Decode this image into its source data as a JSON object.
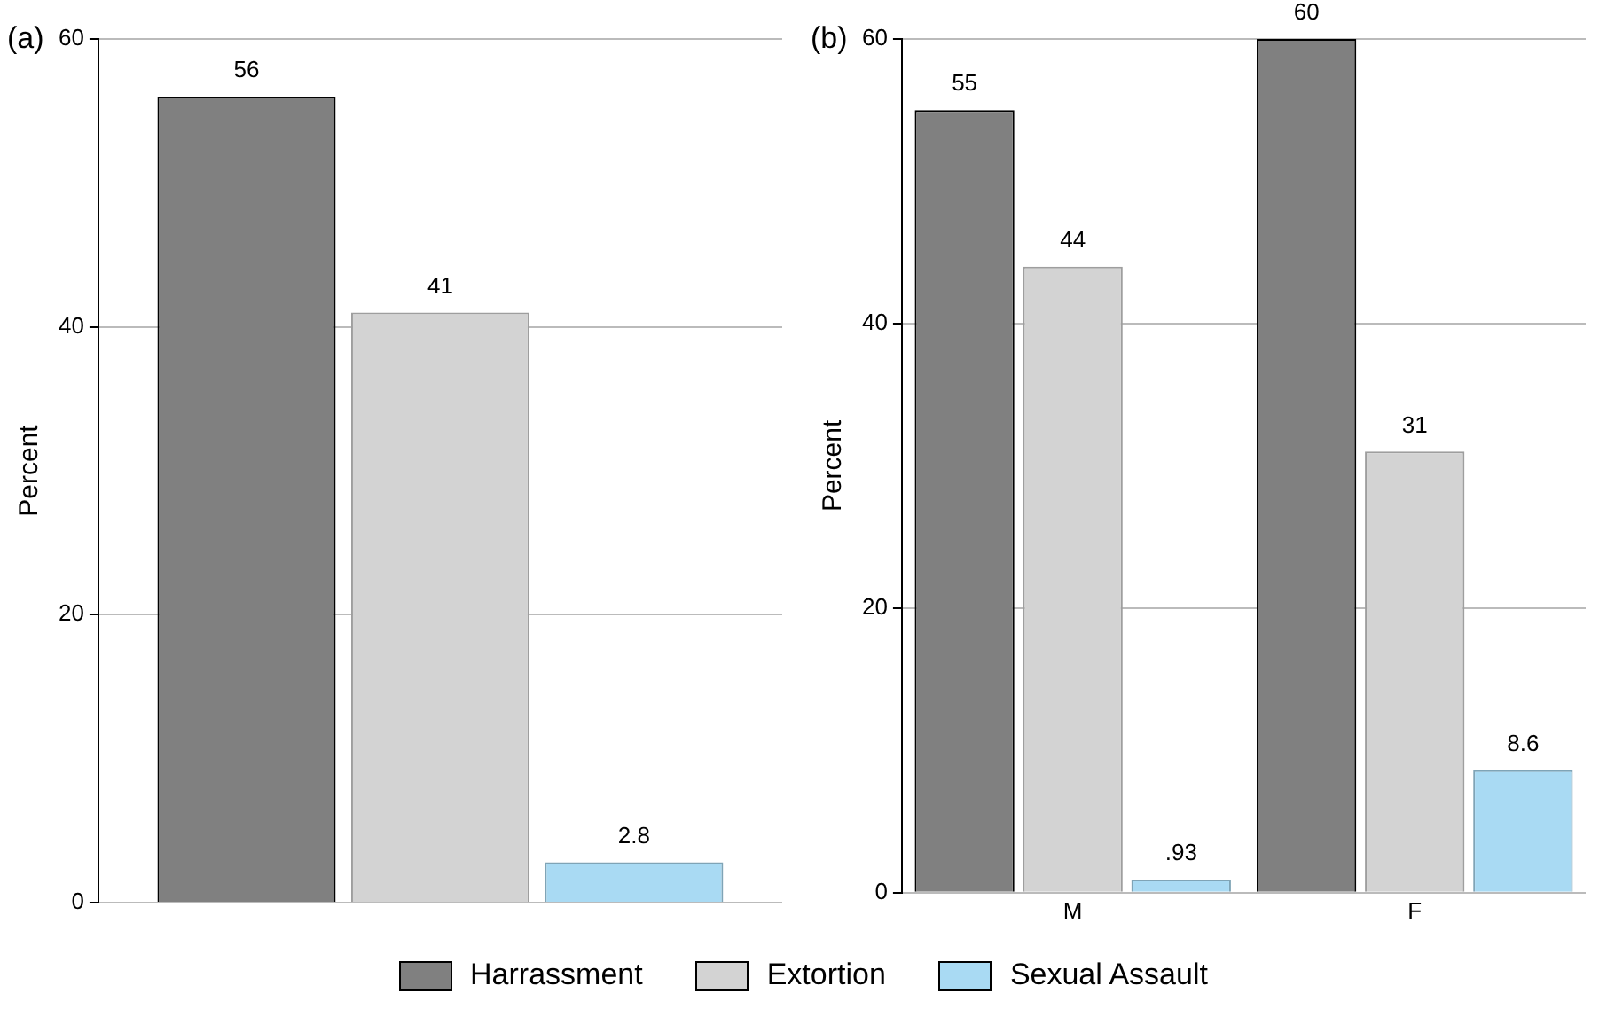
{
  "chart_data": [
    {
      "type": "bar",
      "title": "(a)",
      "ylabel": "Percent",
      "categories": [
        null
      ],
      "series": [
        {
          "name": "Harrassment",
          "color": "#808080",
          "values": [
            56
          ]
        },
        {
          "name": "Extortion",
          "color": "#d3d3d3",
          "values": [
            41
          ]
        },
        {
          "name": "Sexual Assault",
          "color": "#a9daf3",
          "values": [
            2.8
          ]
        }
      ],
      "ylim": [
        0,
        60
      ],
      "yticks": [
        0,
        20,
        40,
        60
      ],
      "grid": "y",
      "legend": "bottom",
      "data_labels": true,
      "tick_labels": "y"
    },
    {
      "type": "bar",
      "title": "(b)",
      "ylabel": "Percent",
      "categories": [
        "M",
        "F"
      ],
      "series": [
        {
          "name": "Harrassment",
          "color": "#808080",
          "values": [
            55,
            60
          ],
          "value_labels": [
            "55",
            "60"
          ]
        },
        {
          "name": "Extortion",
          "color": "#d3d3d3",
          "values": [
            44,
            31
          ],
          "value_labels": [
            "44",
            "31"
          ]
        },
        {
          "name": "Sexual Assault",
          "color": "#a9daf3",
          "values": [
            0.93,
            8.6
          ],
          "value_labels": [
            ".93",
            "8.6"
          ]
        }
      ],
      "ylim": [
        0,
        60
      ],
      "yticks": [
        0,
        20,
        40,
        60
      ],
      "grid": "y",
      "legend": "bottom"
    }
  ]
}
